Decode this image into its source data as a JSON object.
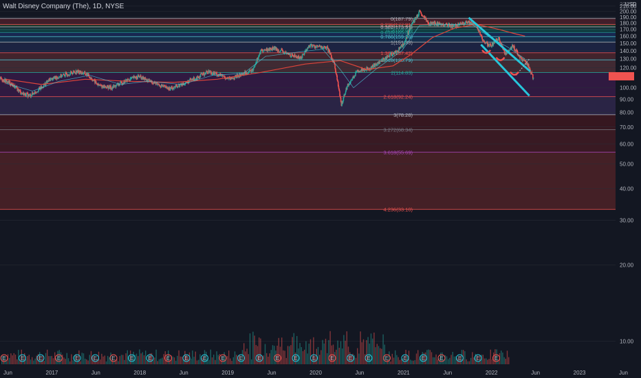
{
  "header": {
    "title": "Walt Disney Company (The), 1D, NYSE",
    "currency": "USD",
    "top_price_partial": "220.00"
  },
  "colors": {
    "background": "#131722",
    "up": "#26a69a",
    "down": "#ef5350",
    "channel": "#26c6da",
    "ma_slow": "#e0453a",
    "ma_fast": "#4dd0e1",
    "current_price_tag": "#ef5350"
  },
  "chart_data": {
    "type": "candlestick",
    "x_axis": {
      "ticks": [
        "Jun",
        "2017",
        "Jun",
        "2018",
        "Jun",
        "2019",
        "Jun",
        "2020",
        "Jun",
        "2021",
        "Jun",
        "2022",
        "Jun",
        "2023",
        "Jun"
      ]
    },
    "y_axis": {
      "scale": "log",
      "range": [
        8,
        222
      ],
      "tick_labels": [
        "210.00",
        "200.00",
        "190.00",
        "180.00",
        "170.00",
        "160.00",
        "150.00",
        "140.00",
        "130.00",
        "120.00",
        "100.00",
        "90.00",
        "80.00",
        "70.00",
        "60.00",
        "50.00",
        "40.00",
        "30.00",
        "20.00",
        "10.00"
      ],
      "tick_values": [
        210,
        200,
        190,
        180,
        170,
        160,
        150,
        140,
        130,
        120,
        100,
        90,
        80,
        70,
        60,
        50,
        40,
        30,
        20,
        10
      ]
    },
    "current_price": 111,
    "fib_levels": [
      {
        "ratio": "0",
        "value": 187.79,
        "label": "0(187.79)",
        "color": "#b2b5be"
      },
      {
        "ratio": "0.236",
        "value": 177.91,
        "label": "0.236(177.91)",
        "color": "#ef5350"
      },
      {
        "ratio": "0.382",
        "value": 173.97,
        "label": "0.382(173.97)",
        "color": "#b2b5be"
      },
      {
        "ratio": "0.5",
        "value": 169.66,
        "label": "0.5(169.66)",
        "color": "#26a69a"
      },
      {
        "ratio": "0.618",
        "value": 165.35,
        "label": "0.618(165.35)",
        "color": "#26a69a"
      },
      {
        "ratio": "0.786",
        "value": 159.2,
        "label": "0.786(159.20)",
        "color": "#4dd0e1"
      },
      {
        "ratio": "1",
        "value": 151.38,
        "label": "1(151.38)",
        "color": "#b2b5be"
      },
      {
        "ratio": "1.382",
        "value": 137.42,
        "label": "1.382(137.42)",
        "color": "#ef5350"
      },
      {
        "ratio": "1.618",
        "value": 128.79,
        "label": "1.618(128.79)",
        "color": "#4dd0e1"
      },
      {
        "ratio": "2",
        "value": 114.83,
        "label": "2(114.83)",
        "color": "#26a69a"
      },
      {
        "ratio": "2.618",
        "value": 92.24,
        "label": "2.618(92.24)",
        "color": "#ef5350"
      },
      {
        "ratio": "3",
        "value": 78.28,
        "label": "3(78.28)",
        "color": "#b2b5be"
      },
      {
        "ratio": "3.272",
        "value": 68.34,
        "label": "3.272(68.34)",
        "color": "#787b86"
      },
      {
        "ratio": "3.618",
        "value": 55.69,
        "label": "3.618(55.69)",
        "color": "#ab47bc"
      },
      {
        "ratio": "4.236",
        "value": 33.1,
        "label": "4.236(33.10)",
        "color": "#ef5350"
      }
    ],
    "fib_band_colors": [
      "#f23645",
      "#4caf50",
      "#26a69a",
      "#009688",
      "#2962ff",
      "#1e88e5",
      "#3f51b5",
      "#ef5350",
      "#e57373",
      "#9c27b0",
      "#7e57c2",
      "#b71c1c",
      "#c62828",
      "#f44336"
    ],
    "price_path": [
      [
        2016.33,
        109
      ],
      [
        2016.45,
        104
      ],
      [
        2016.58,
        95
      ],
      [
        2016.67,
        93
      ],
      [
        2016.8,
        100
      ],
      [
        2016.9,
        108
      ],
      [
        2017.05,
        112
      ],
      [
        2017.2,
        116
      ],
      [
        2017.32,
        113
      ],
      [
        2017.45,
        102
      ],
      [
        2017.6,
        100
      ],
      [
        2017.75,
        106
      ],
      [
        2017.9,
        111
      ],
      [
        2018.0,
        107
      ],
      [
        2018.1,
        104
      ],
      [
        2018.25,
        99
      ],
      [
        2018.4,
        103
      ],
      [
        2018.55,
        109
      ],
      [
        2018.7,
        116
      ],
      [
        2018.8,
        113
      ],
      [
        2018.95,
        108
      ],
      [
        2019.05,
        112
      ],
      [
        2019.2,
        117
      ],
      [
        2019.3,
        140
      ],
      [
        2019.45,
        143
      ],
      [
        2019.6,
        136
      ],
      [
        2019.75,
        131
      ],
      [
        2019.85,
        147
      ],
      [
        2019.95,
        145
      ],
      [
        2020.05,
        143
      ],
      [
        2020.13,
        125
      ],
      [
        2020.21,
        85
      ],
      [
        2020.27,
        100
      ],
      [
        2020.4,
        117
      ],
      [
        2020.55,
        120
      ],
      [
        2020.7,
        130
      ],
      [
        2020.85,
        140
      ],
      [
        2020.93,
        150
      ],
      [
        2021.0,
        175
      ],
      [
        2021.1,
        198
      ],
      [
        2021.2,
        180
      ],
      [
        2021.35,
        178
      ],
      [
        2021.5,
        175
      ],
      [
        2021.65,
        181
      ],
      [
        2021.75,
        176
      ],
      [
        2021.82,
        153
      ],
      [
        2021.9,
        146
      ],
      [
        2022.0,
        156
      ],
      [
        2022.08,
        135
      ],
      [
        2022.16,
        147
      ],
      [
        2022.25,
        130
      ],
      [
        2022.33,
        124
      ],
      [
        2022.4,
        108
      ]
    ],
    "ma_fast_path": [
      [
        2016.4,
        104
      ],
      [
        2016.7,
        97
      ],
      [
        2017.0,
        106
      ],
      [
        2017.35,
        112
      ],
      [
        2017.7,
        103
      ],
      [
        2018.0,
        106
      ],
      [
        2018.4,
        103
      ],
      [
        2018.75,
        112
      ],
      [
        2019.1,
        114
      ],
      [
        2019.35,
        133
      ],
      [
        2019.7,
        138
      ],
      [
        2020.0,
        142
      ],
      [
        2020.2,
        118
      ],
      [
        2020.35,
        100
      ],
      [
        2020.6,
        118
      ],
      [
        2020.9,
        140
      ],
      [
        2021.1,
        176
      ],
      [
        2021.4,
        178
      ],
      [
        2021.7,
        178
      ],
      [
        2021.9,
        158
      ],
      [
        2022.1,
        145
      ],
      [
        2022.3,
        130
      ]
    ],
    "ma_slow_path": [
      [
        2016.4,
        108
      ],
      [
        2016.8,
        103
      ],
      [
        2017.3,
        108
      ],
      [
        2017.8,
        106
      ],
      [
        2018.3,
        105
      ],
      [
        2018.8,
        108
      ],
      [
        2019.3,
        115
      ],
      [
        2019.8,
        124
      ],
      [
        2020.2,
        128
      ],
      [
        2020.5,
        118
      ],
      [
        2020.8,
        122
      ],
      [
        2021.0,
        135
      ],
      [
        2021.25,
        158
      ],
      [
        2021.5,
        172
      ],
      [
        2021.75,
        178
      ],
      [
        2022.0,
        170
      ],
      [
        2022.2,
        163
      ],
      [
        2022.3,
        160
      ]
    ],
    "channel_upper": [
      [
        2021.66,
        189
      ],
      [
        2022.36,
        116
      ]
    ],
    "channel_lower": [
      [
        2021.8,
        148
      ],
      [
        2022.35,
        93
      ]
    ],
    "dotted_projection": [
      [
        2022.2,
        112
      ],
      [
        2022.35,
        130
      ]
    ],
    "pivot_arcs": [
      [
        2021.86,
        139
      ],
      [
        2022.02,
        130
      ],
      [
        2022.18,
        114
      ]
    ],
    "earnings_marker_label": "E"
  }
}
